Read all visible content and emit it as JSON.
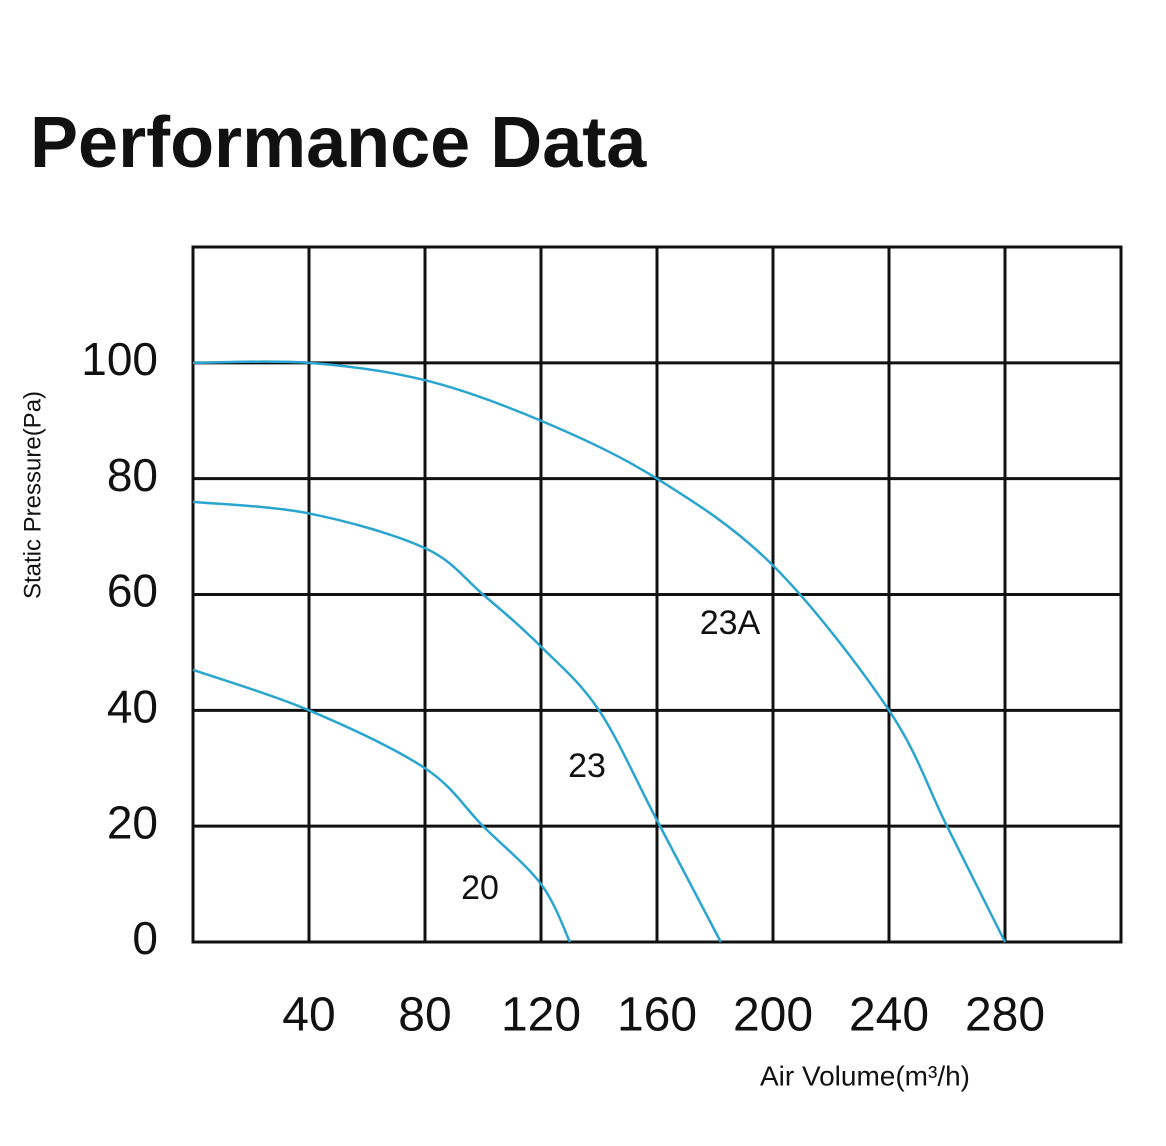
{
  "chart_data": {
    "type": "line",
    "title": "Performance Data",
    "x_label": "Air Volume(m³/h)",
    "y_label": "Static Pressure(Pa)",
    "xlim": [
      0,
      320
    ],
    "ylim": [
      0,
      120
    ],
    "xticks": [
      40,
      80,
      120,
      160,
      200,
      240,
      280
    ],
    "yticks": [
      0,
      20,
      40,
      60,
      80,
      100
    ],
    "grid": true,
    "series": [
      {
        "name": "23A",
        "color": "#2aa5cf",
        "x": [
          0,
          40,
          80,
          120,
          160,
          200,
          240,
          260,
          280
        ],
        "values": [
          100,
          100,
          97,
          90,
          80,
          65,
          40,
          20,
          0
        ]
      },
      {
        "name": "23",
        "color": "#2aa5cf",
        "x": [
          0,
          40,
          80,
          100,
          120,
          140,
          160,
          182
        ],
        "values": [
          76,
          74,
          68,
          60,
          51,
          40,
          21,
          0
        ]
      },
      {
        "name": "20",
        "color": "#2aa5cf",
        "x": [
          0,
          40,
          80,
          100,
          120,
          130
        ],
        "values": [
          47,
          40,
          30,
          20,
          10,
          0
        ]
      }
    ]
  }
}
